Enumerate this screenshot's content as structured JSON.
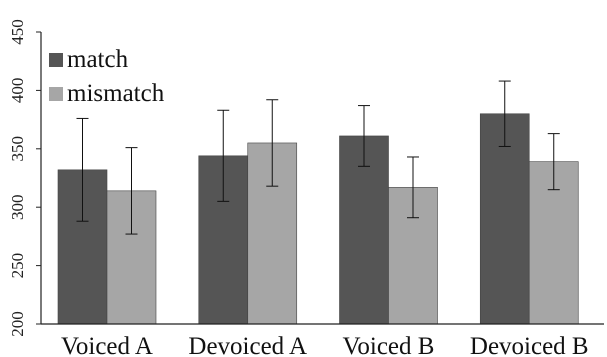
{
  "chart_data": {
    "type": "bar",
    "title": "",
    "xlabel": "",
    "ylabel": "",
    "categories": [
      "Voiced A",
      "Devoiced A",
      "Voiced B",
      "Devoiced B"
    ],
    "series": [
      {
        "name": "match",
        "color": "#555555",
        "values": [
          332,
          344,
          361,
          380
        ],
        "error": [
          44,
          39,
          26,
          28
        ]
      },
      {
        "name": "mismatch",
        "color": "#a6a6a6",
        "values": [
          314,
          355,
          317,
          339
        ],
        "error": [
          37,
          37,
          26,
          24
        ]
      }
    ],
    "ylim": [
      200,
      450
    ],
    "yticks": [
      200,
      250,
      300,
      350,
      400,
      450
    ],
    "grid": false,
    "legend_position": "top-left",
    "error_bars": true
  }
}
